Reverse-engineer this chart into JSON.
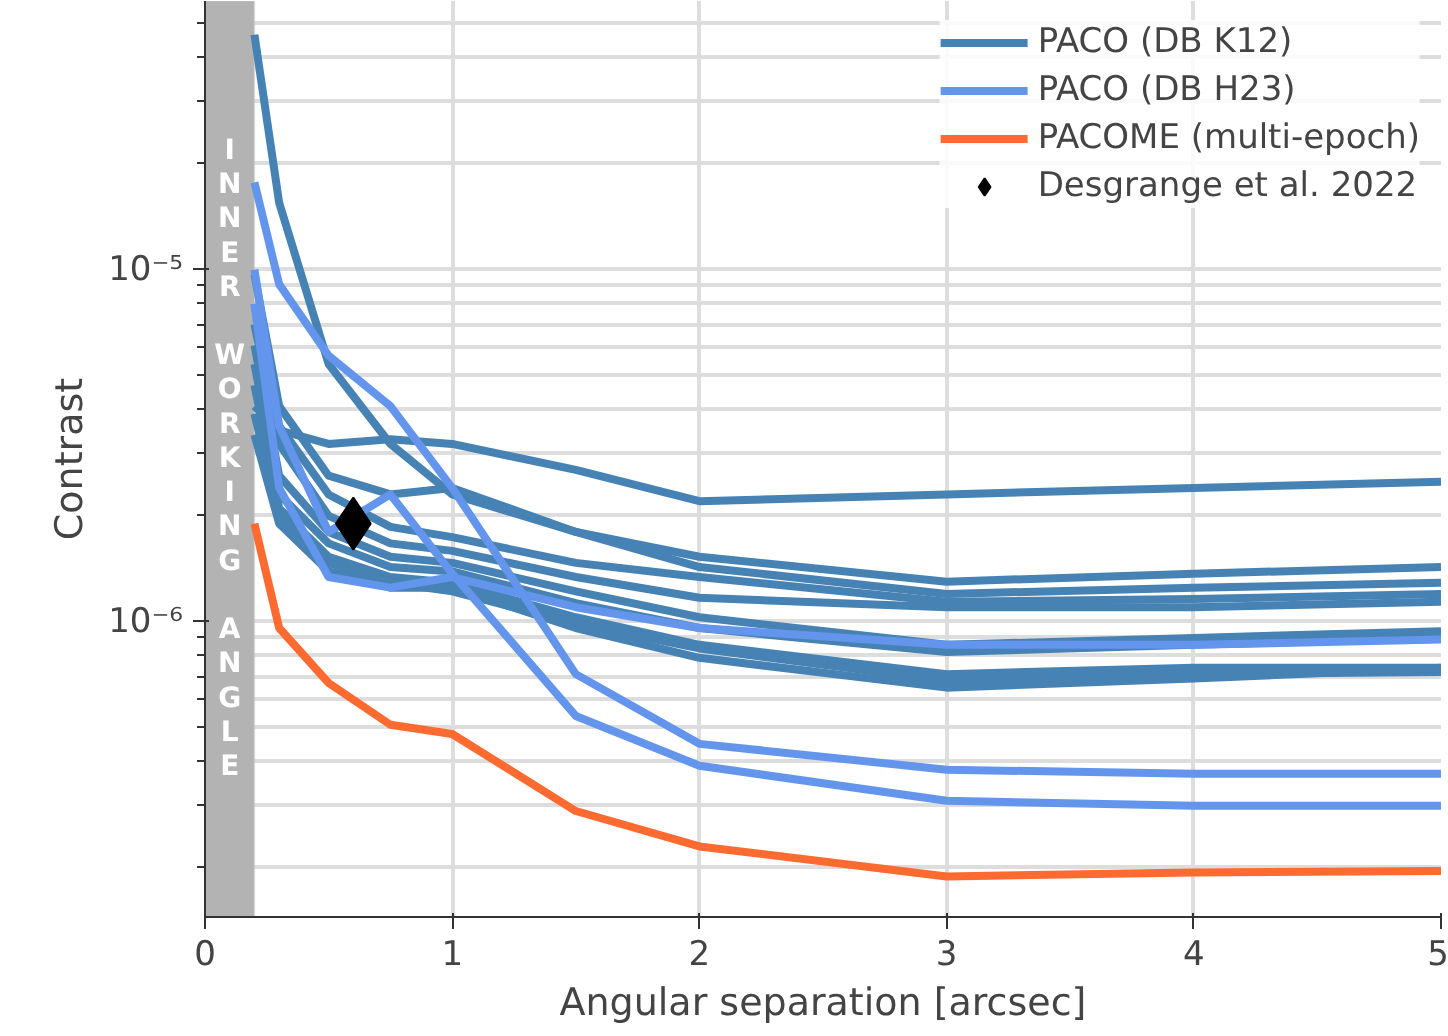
{
  "chart_data": {
    "type": "line",
    "xlabel": "Angular separation [arcsec]",
    "ylabel": "Contrast",
    "log": "y",
    "grid": true,
    "legend": "top right",
    "marker": "none",
    "line_style": "solid",
    "xlim": [
      0,
      5
    ],
    "xticks": [
      0,
      1,
      2,
      3,
      4,
      5
    ],
    "ylim": [
      1.45e-07,
      5.8e-05
    ],
    "yticks": [
      {
        "value": 1e-06,
        "label": "10⁻⁶"
      },
      {
        "value": 1e-05,
        "label": "10⁻⁵"
      }
    ],
    "x": [
      0.2,
      0.3,
      0.5,
      0.75,
      1,
      1.5,
      2,
      3,
      4,
      5
    ],
    "bands": [
      {
        "axis": "x",
        "from": 0,
        "to": 0.2,
        "label": "INNER WORKING ANGLE",
        "color": "#b3b3b3"
      }
    ],
    "series": [
      {
        "name": "PACO (DB K12)",
        "color": "#4682b4",
        "values": [
          4.1e-06,
          3.5e-06,
          3.2e-06,
          3.3e-06,
          3.2e-06,
          2.7e-06,
          2.2e-06,
          2.3e-06,
          2.4e-06,
          2.5e-06
        ]
      },
      {
        "color": "#4682b4",
        "values": [
          4.65e-05,
          1.55e-05,
          5.4e-06,
          3.2e-06,
          2.3e-06,
          1.8e-06,
          1.53e-06,
          1.3e-06,
          1.37e-06,
          1.43e-06
        ]
      },
      {
        "color": "#4682b4",
        "values": [
          9.7e-06,
          4.1e-06,
          2.6e-06,
          2.3e-06,
          2.4e-06,
          1.8e-06,
          1.43e-06,
          1.2e-06,
          1.25e-06,
          1.29e-06
        ]
      },
      {
        "color": "#4682b4",
        "values": [
          8e-06,
          3.6e-06,
          2.3e-06,
          1.86e-06,
          1.74e-06,
          1.47e-06,
          1.34e-06,
          1.14e-06,
          1.16e-06,
          1.2e-06
        ]
      },
      {
        "color": "#4682b4",
        "values": [
          7e-06,
          3.2e-06,
          2e-06,
          1.67e-06,
          1.59e-06,
          1.34e-06,
          1.17e-06,
          1.1e-06,
          1.1e-06,
          1.14e-06
        ]
      },
      {
        "color": "#4682b4",
        "values": [
          6.1e-06,
          2.6e-06,
          1.8e-06,
          1.53e-06,
          1.47e-06,
          1.22e-06,
          1.03e-06,
          8.6e-07,
          9e-07,
          9.4e-07
        ]
      },
      {
        "color": "#4682b4",
        "values": [
          5.4e-06,
          2.3e-06,
          1.67e-06,
          1.43e-06,
          1.39e-06,
          1.13e-06,
          9.6e-07,
          8.2e-07,
          8.6e-07,
          9e-07
        ]
      },
      {
        "color": "#4682b4",
        "values": [
          4.7e-06,
          2.1e-06,
          1.53e-06,
          1.34e-06,
          1.29e-06,
          1.03e-06,
          8.6e-07,
          7.1e-07,
          7.4e-07,
          7.4e-07
        ]
      },
      {
        "color": "#4682b4",
        "values": [
          3.9e-06,
          2e-06,
          1.47e-06,
          1.29e-06,
          1.22e-06,
          9.9e-07,
          8.4e-07,
          6.8e-07,
          7.1e-07,
          7.2e-07
        ]
      },
      {
        "color": "#4682b4",
        "values": [
          3.4e-06,
          1.9e-06,
          1.39e-06,
          1.25e-06,
          1.25e-06,
          9.6e-07,
          7.9e-07,
          6.5e-07,
          6.9e-07,
          7.4e-07
        ]
      },
      {
        "name": "PACO (DB H23)",
        "color": "#6495ed",
        "values": [
          1.77e-05,
          9.1e-06,
          5.7e-06,
          4.1e-06,
          2.4e-06,
          7.1e-07,
          4.5e-07,
          3.8e-07,
          3.7e-07,
          3.7e-07
        ]
      },
      {
        "color": "#6495ed",
        "values": [
          1e-05,
          3.6e-06,
          1.8e-06,
          2.3e-06,
          1.37e-06,
          5.4e-07,
          3.9e-07,
          3.1e-07,
          3e-07,
          3e-07
        ]
      },
      {
        "color": "#6495ed",
        "values": [
          8e-06,
          2.4e-06,
          1.34e-06,
          1.25e-06,
          1.34e-06,
          1.1e-06,
          9.6e-07,
          8.6e-07,
          8.6e-07,
          8.9e-07
        ]
      },
      {
        "name": "PACOME (multi-epoch)",
        "color": "#ff6a30",
        "values": [
          1.9e-06,
          9.6e-07,
          6.7e-07,
          5.1e-07,
          4.8e-07,
          2.9e-07,
          2.3e-07,
          1.89e-07,
          1.94e-07,
          1.96e-07
        ]
      },
      {
        "name": "Desgrange et al. 2022",
        "type": "scatter",
        "marker": "diamond",
        "color": "#000000",
        "x": [
          0.6
        ],
        "values": [
          1.9e-06
        ]
      }
    ]
  }
}
